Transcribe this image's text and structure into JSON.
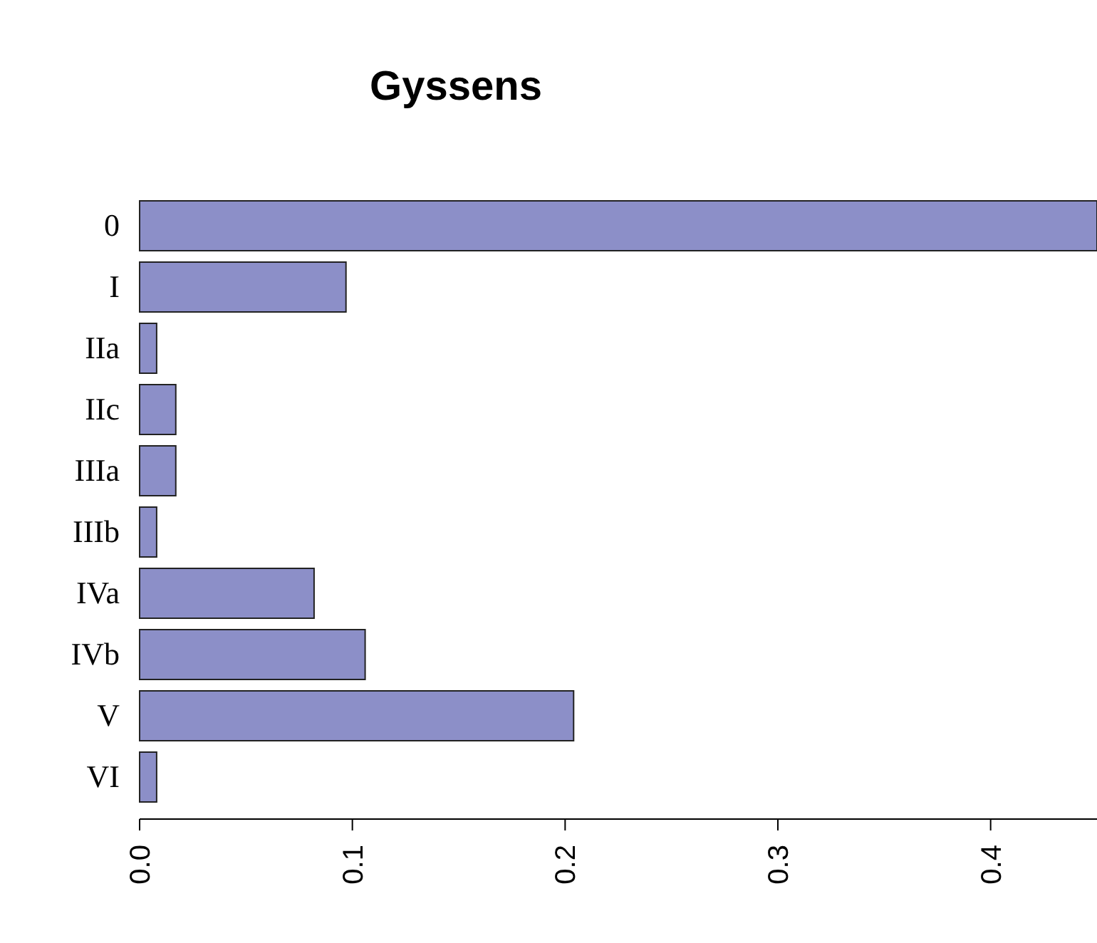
{
  "chart_data": {
    "type": "bar",
    "orientation": "horizontal",
    "title": "Gyssens",
    "categories": [
      "0",
      "I",
      "IIa",
      "IIc",
      "IIIa",
      "IIIb",
      "IVa",
      "IVb",
      "V",
      "VI"
    ],
    "values": [
      0.45,
      0.097,
      0.008,
      0.017,
      0.017,
      0.008,
      0.082,
      0.106,
      0.204,
      0.008
    ],
    "color": "#8c8fc8",
    "xlim": [
      0,
      0.45
    ],
    "xticks": [
      {
        "value": 0,
        "label": "0.0"
      },
      0.1,
      0.2,
      0.3,
      0.4
    ],
    "grid": false
  }
}
